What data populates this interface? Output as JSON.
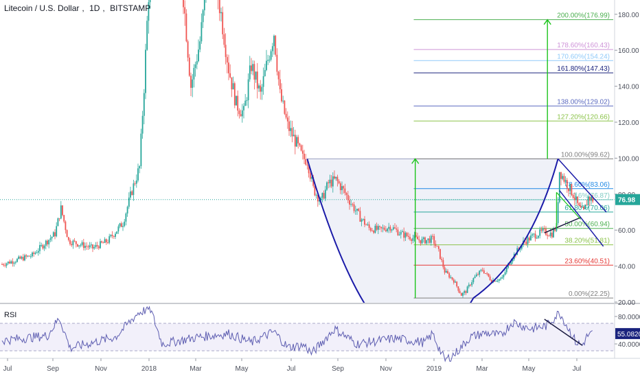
{
  "title": {
    "pair": "Litecoin / U.S. Dollar",
    "interval": "1D",
    "exchange": "BITSTAMP"
  },
  "colors": {
    "up": "#26a69a",
    "down": "#ef5350",
    "cup": "#1a1aa8",
    "target": "#1cc41c",
    "rsi": "#5c5cb0",
    "last_price_bg": "#26a69a",
    "rsi_badge_bg": "#1a237e"
  },
  "chart_data": [
    {
      "type": "candlestick",
      "title": "Litecoin / U.S. Dollar, 1D, BITSTAMP",
      "x_axis_labels": [
        "Jul",
        "Sep",
        "Nov",
        "2018",
        "Mar",
        "May",
        "Jul",
        "Sep",
        "Nov",
        "2019",
        "Mar",
        "May",
        "Jul"
      ],
      "y_ticks": [
        20,
        40,
        60,
        80,
        100,
        120,
        140,
        160,
        180
      ],
      "y_tick_labels": [
        "20.00",
        "40.00",
        "60.00",
        "80.00",
        "100.00",
        "120.00",
        "140.00",
        "160.00",
        "180.00"
      ],
      "ylim": [
        20,
        183
      ],
      "price_anchors": [
        {
          "t": 0,
          "p": 41
        },
        {
          "t": 40,
          "p": 46
        },
        {
          "t": 70,
          "p": 58
        },
        {
          "t": 78,
          "p": 72
        },
        {
          "t": 88,
          "p": 54
        },
        {
          "t": 120,
          "p": 50
        },
        {
          "t": 140,
          "p": 54
        },
        {
          "t": 160,
          "p": 64
        },
        {
          "t": 172,
          "p": 82
        },
        {
          "t": 182,
          "p": 95
        },
        {
          "t": 188,
          "p": 140
        },
        {
          "t": 192,
          "p": 175
        },
        {
          "t": 198,
          "p": 225
        },
        {
          "t": 206,
          "p": 310
        },
        {
          "t": 214,
          "p": 240
        },
        {
          "t": 226,
          "p": 225
        },
        {
          "t": 238,
          "p": 200
        },
        {
          "t": 250,
          "p": 140
        },
        {
          "t": 262,
          "p": 165
        },
        {
          "t": 276,
          "p": 215
        },
        {
          "t": 290,
          "p": 180
        },
        {
          "t": 300,
          "p": 150
        },
        {
          "t": 310,
          "p": 130
        },
        {
          "t": 320,
          "p": 125
        },
        {
          "t": 330,
          "p": 152
        },
        {
          "t": 342,
          "p": 135
        },
        {
          "t": 352,
          "p": 155
        },
        {
          "t": 360,
          "p": 170
        },
        {
          "t": 368,
          "p": 135
        },
        {
          "t": 378,
          "p": 118
        },
        {
          "t": 390,
          "p": 108
        },
        {
          "t": 398,
          "p": 100
        },
        {
          "t": 404,
          "p": 99
        },
        {
          "t": 412,
          "p": 83
        },
        {
          "t": 422,
          "p": 76
        },
        {
          "t": 432,
          "p": 86
        },
        {
          "t": 442,
          "p": 88
        },
        {
          "t": 452,
          "p": 82
        },
        {
          "t": 462,
          "p": 75
        },
        {
          "t": 474,
          "p": 67
        },
        {
          "t": 486,
          "p": 61
        },
        {
          "t": 500,
          "p": 60
        },
        {
          "t": 514,
          "p": 62
        },
        {
          "t": 528,
          "p": 58
        },
        {
          "t": 542,
          "p": 56
        },
        {
          "t": 556,
          "p": 54
        },
        {
          "t": 570,
          "p": 55
        },
        {
          "t": 578,
          "p": 48
        },
        {
          "t": 586,
          "p": 37
        },
        {
          "t": 598,
          "p": 32
        },
        {
          "t": 608,
          "p": 24
        },
        {
          "t": 614,
          "p": 26
        },
        {
          "t": 624,
          "p": 33
        },
        {
          "t": 636,
          "p": 38
        },
        {
          "t": 648,
          "p": 32
        },
        {
          "t": 662,
          "p": 33
        },
        {
          "t": 674,
          "p": 44
        },
        {
          "t": 690,
          "p": 53
        },
        {
          "t": 704,
          "p": 57
        },
        {
          "t": 716,
          "p": 59
        },
        {
          "t": 728,
          "p": 58
        },
        {
          "t": 734,
          "p": 62
        },
        {
          "t": 738,
          "p": 93
        },
        {
          "t": 746,
          "p": 87
        },
        {
          "t": 756,
          "p": 80
        },
        {
          "t": 764,
          "p": 72
        },
        {
          "t": 770,
          "p": 70
        },
        {
          "t": 776,
          "p": 78
        },
        {
          "t": 782,
          "p": 76.98
        }
      ],
      "fib_levels": [
        {
          "label": "0.00%(22.25)",
          "value": 22.25,
          "color": "#7f7f7f"
        },
        {
          "label": "23.60%(40.51)",
          "value": 40.51,
          "color": "#e53935"
        },
        {
          "label": "38.20%(51.81)",
          "value": 51.81,
          "color": "#8bc34a"
        },
        {
          "label": "50.00%(60.94)",
          "value": 60.94,
          "color": "#4caf50"
        },
        {
          "label": "61.80%(70.06)",
          "value": 70.06,
          "color": "#26a69a"
        },
        {
          "label": "70.6%(76.87)",
          "value": 76.87,
          "color": "#80cbc4"
        },
        {
          "label": "78.60%(83.06)",
          "value": 83.06,
          "color": "#1e88e5"
        },
        {
          "label": "100.00%(99.62)",
          "value": 99.62,
          "color": "#7f7f7f"
        },
        {
          "label": "127.20%(120.66)",
          "value": 120.66,
          "color": "#8bc34a"
        },
        {
          "label": "138.00%(129.02)",
          "value": 129.02,
          "color": "#5c6bc0"
        },
        {
          "label": "161.80%(147.43)",
          "value": 147.43,
          "color": "#1a237e"
        },
        {
          "label": "170.60%(154.24)",
          "value": 154.24,
          "color": "#90caf9"
        },
        {
          "label": "178.60%(160.43)",
          "value": 160.43,
          "color": "#ce93d8"
        },
        {
          "label": "200.00%(176.99)",
          "value": 176.99,
          "color": "#4caf50"
        }
      ],
      "last_price": "76.98",
      "last_price_value": 76.98
    },
    {
      "type": "line",
      "title": "RSI",
      "y_ticks": [
        40,
        80
      ],
      "y_tick_labels": [
        "40.0000",
        "80.0000"
      ],
      "band": [
        30,
        70
      ],
      "ylim": [
        10,
        95
      ],
      "current": "55.0820",
      "current_value": 55.082,
      "rsi_anchors": [
        {
          "t": 0,
          "v": 45
        },
        {
          "t": 60,
          "v": 52
        },
        {
          "t": 76,
          "v": 78
        },
        {
          "t": 90,
          "v": 34
        },
        {
          "t": 150,
          "v": 50
        },
        {
          "t": 180,
          "v": 85
        },
        {
          "t": 196,
          "v": 92
        },
        {
          "t": 212,
          "v": 40
        },
        {
          "t": 260,
          "v": 50
        },
        {
          "t": 300,
          "v": 55
        },
        {
          "t": 330,
          "v": 42
        },
        {
          "t": 360,
          "v": 58
        },
        {
          "t": 378,
          "v": 35
        },
        {
          "t": 400,
          "v": 38
        },
        {
          "t": 410,
          "v": 26
        },
        {
          "t": 440,
          "v": 62
        },
        {
          "t": 470,
          "v": 40
        },
        {
          "t": 520,
          "v": 48
        },
        {
          "t": 560,
          "v": 42
        },
        {
          "t": 570,
          "v": 55
        },
        {
          "t": 586,
          "v": 16
        },
        {
          "t": 600,
          "v": 26
        },
        {
          "t": 620,
          "v": 50
        },
        {
          "t": 640,
          "v": 56
        },
        {
          "t": 660,
          "v": 52
        },
        {
          "t": 676,
          "v": 72
        },
        {
          "t": 700,
          "v": 62
        },
        {
          "t": 720,
          "v": 66
        },
        {
          "t": 738,
          "v": 86
        },
        {
          "t": 746,
          "v": 70
        },
        {
          "t": 760,
          "v": 42
        },
        {
          "t": 768,
          "v": 38
        },
        {
          "t": 775,
          "v": 52
        },
        {
          "t": 782,
          "v": 55.082
        }
      ]
    }
  ]
}
